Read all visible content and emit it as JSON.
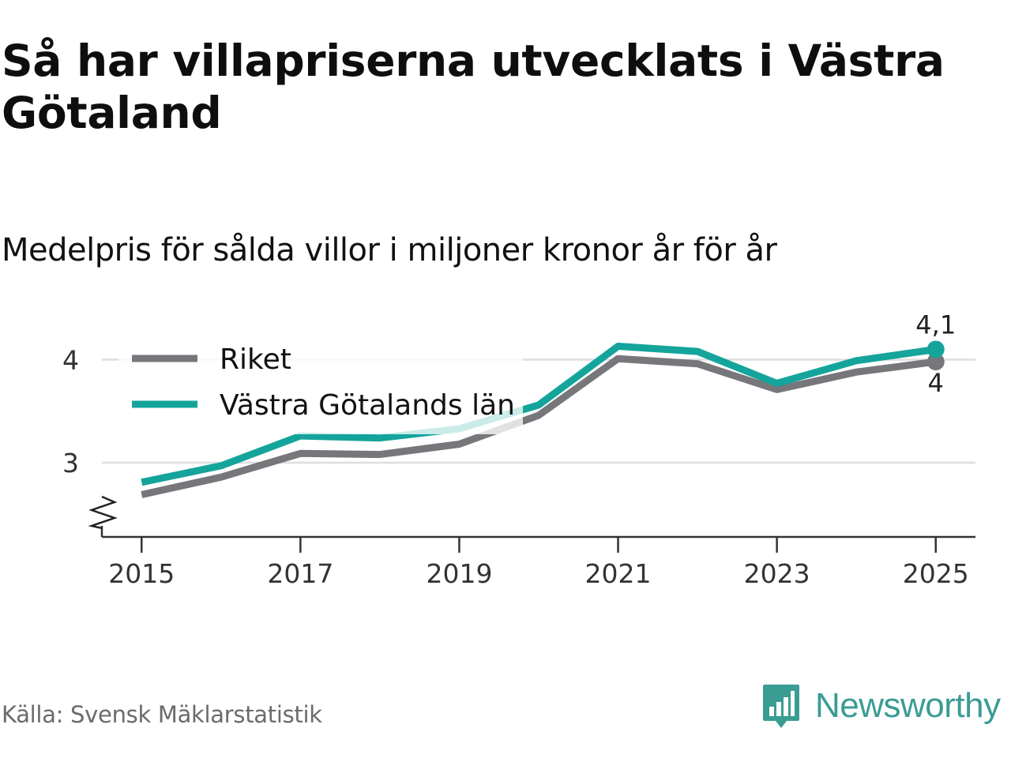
{
  "title": "Så har villapriserna utvecklats i Västra Götaland",
  "subtitle": "Medelpris för sålda villor i miljoner kronor år för år",
  "source": "Källa: Svensk Mäklarstatistik",
  "brand": "Newsworthy",
  "colors": {
    "riket": "#76767b",
    "vastra": "#14a49b",
    "grid": "#dedede",
    "axis": "#333333",
    "brand": "#3a9c93"
  },
  "chart_data": {
    "type": "line",
    "title": "Så har villapriserna utvecklats i Västra Götaland",
    "subtitle": "Medelpris för sålda villor i miljoner kronor år för år",
    "xlabel": "",
    "ylabel": "",
    "x": [
      2015,
      2016,
      2017,
      2018,
      2019,
      2020,
      2021,
      2022,
      2023,
      2024,
      2025
    ],
    "xticks": [
      "2015",
      "2017",
      "2019",
      "2021",
      "2023",
      "2025"
    ],
    "yticks": [
      3,
      4
    ],
    "ytick_labels": [
      "3",
      "4"
    ],
    "xlim": [
      2014.5,
      2025.5
    ],
    "ylim": [
      2.28,
      4.41
    ],
    "axis_break": true,
    "grid": true,
    "legend_position": "top-left",
    "series": [
      {
        "name": "Riket",
        "values": [
          2.69,
          2.86,
          3.09,
          3.08,
          3.18,
          3.46,
          4.01,
          3.96,
          3.71,
          3.88,
          3.98
        ],
        "end_label": "4"
      },
      {
        "name": "Västra Götalands län",
        "values": [
          2.81,
          2.97,
          3.26,
          3.24,
          3.33,
          3.56,
          4.13,
          4.08,
          3.77,
          3.99,
          4.1
        ],
        "end_label": "4,1"
      }
    ]
  }
}
